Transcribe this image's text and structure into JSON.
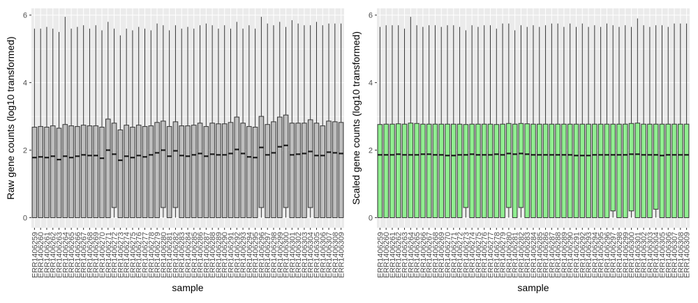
{
  "chart_data": [
    {
      "type": "boxplot",
      "xlabel": "sample",
      "ylabel": "Raw gene counts (log10 transformed)",
      "ylim": [
        -0.3,
        6.2
      ],
      "yticks": [
        0,
        2,
        4,
        6
      ],
      "grid": true,
      "colors": {
        "fill": "#bebebe",
        "outline": "#333333",
        "panel": "#ebebeb",
        "grid": "#ffffff"
      },
      "categories": [
        "ERR1406259",
        "ERR1406260",
        "ERR1406261",
        "ERR1406262",
        "ERR1406263",
        "ERR1406264",
        "ERR1406265",
        "ERR1406266",
        "ERR1406267",
        "ERR1406268",
        "ERR1406269",
        "ERR1406270",
        "ERR1406271",
        "ERR1406272",
        "ERR1406273",
        "ERR1406274",
        "ERR1406275",
        "ERR1406276",
        "ERR1406277",
        "ERR1406278",
        "ERR1406279",
        "ERR1406280",
        "ERR1406281",
        "ERR1406282",
        "ERR1406283",
        "ERR1406284",
        "ERR1406285",
        "ERR1406286",
        "ERR1406287",
        "ERR1406288",
        "ERR1406289",
        "ERR1406290",
        "ERR1406291",
        "ERR1406292",
        "ERR1406293",
        "ERR1406294",
        "ERR1406295",
        "ERR1406296",
        "ERR1406297",
        "ERR1406298",
        "ERR1406299",
        "ERR1406300",
        "ERR1406301",
        "ERR1406302",
        "ERR1406303",
        "ERR1406304",
        "ERR1406305",
        "ERR1406306",
        "ERR1406307",
        "ERR1406308",
        "ERR1406309"
      ],
      "whisker_high": [
        5.6,
        5.6,
        5.65,
        5.6,
        5.5,
        5.95,
        5.6,
        5.65,
        5.7,
        5.6,
        5.7,
        5.55,
        5.8,
        5.6,
        5.4,
        5.6,
        5.55,
        5.65,
        5.6,
        5.55,
        5.75,
        5.7,
        5.55,
        5.7,
        5.6,
        5.65,
        5.6,
        5.7,
        5.75,
        5.7,
        5.6,
        5.7,
        5.6,
        5.8,
        5.6,
        5.7,
        5.6,
        5.95,
        5.75,
        5.7,
        5.8,
        5.65,
        5.85,
        5.75,
        5.7,
        5.7,
        5.8,
        5.7,
        5.75,
        5.75,
        5.75
      ],
      "q3": [
        2.68,
        2.7,
        2.68,
        2.72,
        2.65,
        2.76,
        2.72,
        2.7,
        2.74,
        2.72,
        2.72,
        2.68,
        2.92,
        2.8,
        2.6,
        2.74,
        2.68,
        2.74,
        2.7,
        2.72,
        2.82,
        2.86,
        2.7,
        2.84,
        2.72,
        2.72,
        2.74,
        2.8,
        2.7,
        2.8,
        2.78,
        2.78,
        2.82,
        2.98,
        2.8,
        2.7,
        2.68,
        3.0,
        2.76,
        2.84,
        2.98,
        3.04,
        2.8,
        2.8,
        2.8,
        2.9,
        2.8,
        2.72,
        2.86,
        2.84,
        2.82
      ],
      "median": [
        1.78,
        1.8,
        1.78,
        1.82,
        1.72,
        1.82,
        1.78,
        1.82,
        1.86,
        1.84,
        1.84,
        1.76,
        2.0,
        1.88,
        1.7,
        1.82,
        1.78,
        1.84,
        1.8,
        1.86,
        1.92,
        2.0,
        1.82,
        1.98,
        1.84,
        1.82,
        1.86,
        1.9,
        1.82,
        1.88,
        1.86,
        1.86,
        1.9,
        2.02,
        1.9,
        1.8,
        1.78,
        2.08,
        1.86,
        1.92,
        2.1,
        2.14,
        1.86,
        1.88,
        1.9,
        1.96,
        1.84,
        1.84,
        1.94,
        1.92,
        1.9
      ],
      "q1": [
        0,
        0,
        0,
        0,
        0,
        0,
        0,
        0,
        0,
        0,
        0,
        0,
        0,
        0.3,
        0,
        0,
        0,
        0,
        0,
        0,
        0,
        0.3,
        0,
        0.3,
        0,
        0,
        0,
        0,
        0,
        0,
        0,
        0,
        0,
        0,
        0,
        0,
        0,
        0.3,
        0,
        0,
        0,
        0.3,
        0,
        0,
        0,
        0.3,
        0,
        0,
        0,
        0,
        0
      ],
      "whisker_low": [
        0,
        0,
        0,
        0,
        0,
        0,
        0,
        0,
        0,
        0,
        0,
        0,
        0,
        0,
        0,
        0,
        0,
        0,
        0,
        0,
        0,
        0,
        0,
        0,
        0,
        0,
        0,
        0,
        0,
        0,
        0,
        0,
        0,
        0,
        0,
        0,
        0,
        0,
        0,
        0,
        0,
        0,
        0,
        0,
        0,
        0,
        0,
        0,
        0,
        0,
        0
      ]
    },
    {
      "type": "boxplot",
      "xlabel": "sample",
      "ylabel": "Scaled gene counts (log10 transformed)",
      "ylim": [
        -0.3,
        6.2
      ],
      "yticks": [
        0,
        2,
        4,
        6
      ],
      "grid": true,
      "colors": {
        "fill": "#90ee90",
        "outline": "#333333",
        "panel": "#ebebeb",
        "grid": "#ffffff"
      },
      "categories": [
        "ERR1406259",
        "ERR1406260",
        "ERR1406261",
        "ERR1406262",
        "ERR1406263",
        "ERR1406264",
        "ERR1406265",
        "ERR1406266",
        "ERR1406267",
        "ERR1406268",
        "ERR1406269",
        "ERR1406270",
        "ERR1406271",
        "ERR1406272",
        "ERR1406273",
        "ERR1406274",
        "ERR1406275",
        "ERR1406276",
        "ERR1406277",
        "ERR1406278",
        "ERR1406279",
        "ERR1406280",
        "ERR1406281",
        "ERR1406282",
        "ERR1406283",
        "ERR1406284",
        "ERR1406285",
        "ERR1406286",
        "ERR1406287",
        "ERR1406288",
        "ERR1406289",
        "ERR1406290",
        "ERR1406291",
        "ERR1406292",
        "ERR1406293",
        "ERR1406294",
        "ERR1406295",
        "ERR1406296",
        "ERR1406297",
        "ERR1406298",
        "ERR1406299",
        "ERR1406300",
        "ERR1406301",
        "ERR1406302",
        "ERR1406303",
        "ERR1406304",
        "ERR1406305",
        "ERR1406306",
        "ERR1406307",
        "ERR1406308",
        "ERR1406309"
      ],
      "whisker_high": [
        5.65,
        5.7,
        5.7,
        5.7,
        5.6,
        5.95,
        5.7,
        5.65,
        5.7,
        5.7,
        5.65,
        5.7,
        5.7,
        5.65,
        5.55,
        5.7,
        5.65,
        5.7,
        5.7,
        5.6,
        5.75,
        5.75,
        5.55,
        5.7,
        5.65,
        5.7,
        5.65,
        5.7,
        5.75,
        5.75,
        5.65,
        5.75,
        5.65,
        5.75,
        5.65,
        5.7,
        5.65,
        5.75,
        5.7,
        5.65,
        5.7,
        5.65,
        5.9,
        5.7,
        5.65,
        5.7,
        5.7,
        5.65,
        5.75,
        5.75,
        5.75
      ],
      "q3": [
        2.76,
        2.77,
        2.77,
        2.78,
        2.77,
        2.8,
        2.79,
        2.77,
        2.77,
        2.77,
        2.77,
        2.77,
        2.77,
        2.77,
        2.76,
        2.77,
        2.77,
        2.77,
        2.77,
        2.76,
        2.77,
        2.79,
        2.77,
        2.79,
        2.78,
        2.77,
        2.77,
        2.77,
        2.77,
        2.77,
        2.77,
        2.77,
        2.77,
        2.77,
        2.77,
        2.77,
        2.77,
        2.77,
        2.77,
        2.77,
        2.77,
        2.79,
        2.8,
        2.77,
        2.77,
        2.77,
        2.77,
        2.77,
        2.77,
        2.77,
        2.77
      ],
      "median": [
        1.86,
        1.86,
        1.86,
        1.88,
        1.86,
        1.86,
        1.86,
        1.88,
        1.88,
        1.86,
        1.86,
        1.84,
        1.84,
        1.86,
        1.86,
        1.88,
        1.86,
        1.86,
        1.86,
        1.88,
        1.86,
        1.9,
        1.88,
        1.9,
        1.88,
        1.86,
        1.86,
        1.86,
        1.86,
        1.86,
        1.86,
        1.86,
        1.84,
        1.84,
        1.84,
        1.86,
        1.86,
        1.86,
        1.86,
        1.86,
        1.86,
        1.88,
        1.88,
        1.86,
        1.86,
        1.86,
        1.84,
        1.86,
        1.86,
        1.86,
        1.86
      ],
      "q1": [
        0,
        0,
        0,
        0,
        0,
        0,
        0,
        0,
        0,
        0,
        0,
        0,
        0,
        0,
        0.3,
        0,
        0,
        0,
        0,
        0,
        0,
        0.3,
        0,
        0.3,
        0,
        0,
        0,
        0,
        0,
        0,
        0,
        0,
        0,
        0,
        0,
        0,
        0,
        0,
        0.2,
        0,
        0,
        0.2,
        0,
        0,
        0,
        0.25,
        0,
        0,
        0,
        0,
        0
      ],
      "whisker_low": [
        0,
        0,
        0,
        0,
        0,
        0,
        0,
        0,
        0,
        0,
        0,
        0,
        0,
        0,
        0,
        0,
        0,
        0,
        0,
        0,
        0,
        0,
        0,
        0,
        0,
        0,
        0,
        0,
        0,
        0,
        0,
        0,
        0,
        0,
        0,
        0,
        0,
        0,
        0,
        0,
        0,
        0,
        0,
        0,
        0,
        0,
        0,
        0,
        0,
        0,
        0
      ]
    }
  ]
}
